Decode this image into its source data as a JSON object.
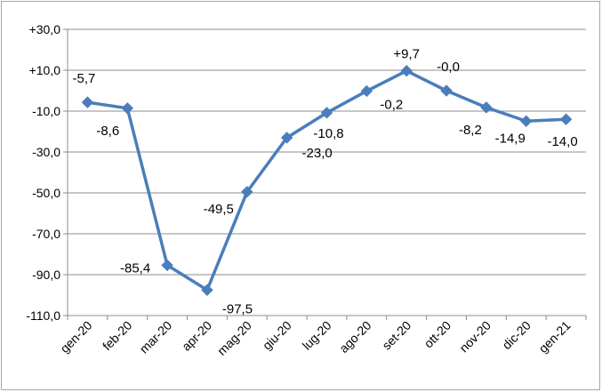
{
  "chart_data": {
    "type": "line",
    "title": "",
    "xlabel": "",
    "ylabel": "",
    "categories": [
      "gen-20",
      "feb-20",
      "mar-20",
      "apr-20",
      "mag-20",
      "giu-20",
      "lug-20",
      "ago-20",
      "set-20",
      "ott-20",
      "nov-20",
      "dic-20",
      "gen-21"
    ],
    "series": [
      {
        "values": [
          -5.7,
          -8.6,
          -85.4,
          -97.5,
          -49.5,
          -23.0,
          -10.8,
          -0.2,
          9.7,
          -0.0,
          -8.2,
          -14.9,
          -14.0
        ]
      }
    ],
    "data_labels": [
      "-5,7",
      "-8,6",
      "-85,4",
      "-97,5",
      "-49,5",
      "-23,0",
      "-10,8",
      "-0,2",
      "+9,7",
      "-0,0",
      "-8,2",
      "-14,9",
      "-14,0"
    ],
    "ylim": [
      -110,
      30
    ],
    "yticks": [
      30,
      10,
      -10,
      -30,
      -50,
      -70,
      -90,
      -110
    ],
    "ytick_labels": [
      "+30,0",
      "+10,0",
      "-10,0",
      "-30,0",
      "-50,0",
      "-70,0",
      "-90,0",
      "-110,0"
    ],
    "grid": true,
    "legend": "none",
    "colors": {
      "line": "#4a7ebb",
      "grid": "#8c8c8c",
      "axis": "#8c8c8c"
    }
  }
}
